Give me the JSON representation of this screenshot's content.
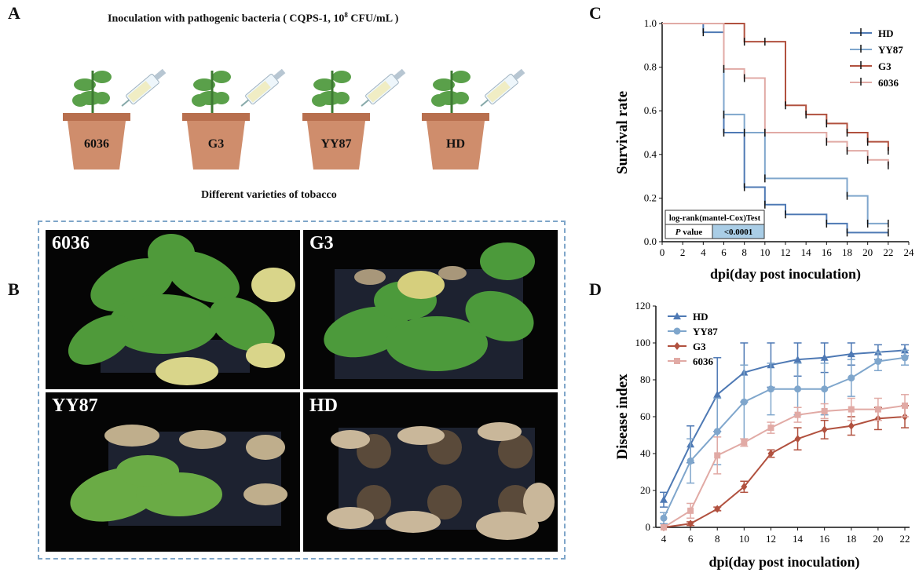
{
  "panel_a": {
    "letter": "A",
    "title": "Inoculation with pathogenic bacteria ( CQPS-1, 10",
    "title_sup": "8",
    "title_tail": " CFU/mL )",
    "pots": [
      "6036",
      "G3",
      "YY87",
      "HD"
    ],
    "caption": "Different varieties of tobacco"
  },
  "panel_b": {
    "letter": "B",
    "photos": [
      "6036",
      "G3",
      "YY87",
      "HD"
    ]
  },
  "colors": {
    "HD": "#4e79b4",
    "YY87": "#7fa6cc",
    "G3": "#b1513f",
    "6036": "#e1aaa5"
  },
  "chart_data": [
    {
      "panel": "C",
      "type": "line",
      "xlabel": "dpi(day post inoculation)",
      "ylabel": "Survival rate",
      "xlim": [
        0,
        24
      ],
      "ylim": [
        0,
        1.0
      ],
      "xticks": [
        0,
        2,
        4,
        6,
        8,
        10,
        12,
        14,
        16,
        18,
        20,
        22,
        24
      ],
      "yticks": [
        "0.0",
        "0.2",
        "0.4",
        "0.6",
        "0.8",
        "1.0"
      ],
      "legend_position": "top-right",
      "series": [
        {
          "name": "HD",
          "steps": [
            [
              0,
              1.0
            ],
            [
              4,
              0.96
            ],
            [
              6,
              0.5
            ],
            [
              8,
              0.25
            ],
            [
              10,
              0.17
            ],
            [
              12,
              0.125
            ],
            [
              16,
              0.083
            ],
            [
              18,
              0.042
            ],
            [
              22,
              0.042
            ]
          ]
        },
        {
          "name": "YY87",
          "steps": [
            [
              0,
              1.0
            ],
            [
              6,
              0.583
            ],
            [
              8,
              0.5
            ],
            [
              10,
              0.29
            ],
            [
              18,
              0.21
            ],
            [
              20,
              0.083
            ],
            [
              22,
              0.083
            ]
          ]
        },
        {
          "name": "G3",
          "steps": [
            [
              0,
              1.0
            ],
            [
              8,
              0.917
            ],
            [
              10,
              0.917
            ],
            [
              12,
              0.625
            ],
            [
              14,
              0.583
            ],
            [
              16,
              0.542
            ],
            [
              18,
              0.5
            ],
            [
              20,
              0.458
            ],
            [
              22,
              0.417
            ]
          ]
        },
        {
          "name": "6036",
          "steps": [
            [
              0,
              1.0
            ],
            [
              6,
              0.792
            ],
            [
              8,
              0.75
            ],
            [
              10,
              0.5
            ],
            [
              16,
              0.458
            ],
            [
              18,
              0.417
            ],
            [
              20,
              0.375
            ],
            [
              22,
              0.35
            ]
          ]
        }
      ],
      "stats_table": {
        "header": "log-rank(mantel-Cox)Test",
        "label_italic": "P",
        "label": " value",
        "value": "<0.0001"
      }
    },
    {
      "panel": "D",
      "type": "line",
      "xlabel": "dpi(day post inoculation)",
      "ylabel": "Disease index",
      "xlim": [
        4,
        22
      ],
      "ylim": [
        0,
        120
      ],
      "xticks": [
        4,
        6,
        8,
        10,
        12,
        14,
        16,
        18,
        20,
        22
      ],
      "yticks": [
        0,
        20,
        40,
        60,
        80,
        100,
        120
      ],
      "legend_position": "top-left",
      "x": [
        4,
        6,
        8,
        10,
        12,
        14,
        16,
        18,
        20,
        22
      ],
      "series": [
        {
          "name": "HD",
          "marker": "triangle",
          "values": [
            15,
            45,
            72,
            84,
            88,
            91,
            92,
            94,
            95,
            96
          ],
          "errors": [
            4,
            10,
            20,
            16,
            12,
            9,
            8,
            6,
            4,
            3
          ]
        },
        {
          "name": "YY87",
          "marker": "circle",
          "values": [
            5,
            36,
            52,
            68,
            75,
            75,
            75,
            81,
            90,
            92
          ],
          "errors": [
            3,
            12,
            18,
            20,
            14,
            14,
            14,
            10,
            5,
            4
          ]
        },
        {
          "name": "G3",
          "marker": "diamond",
          "values": [
            0,
            2,
            10,
            22,
            40,
            48,
            53,
            55,
            59,
            60
          ],
          "errors": [
            0,
            1,
            1,
            3,
            2,
            6,
            5,
            5,
            6,
            6
          ]
        },
        {
          "name": "6036",
          "marker": "square",
          "values": [
            0,
            9,
            39,
            46,
            54,
            61,
            63,
            64,
            64,
            66
          ],
          "errors": [
            0,
            4,
            10,
            2,
            3,
            4,
            4,
            6,
            6,
            6
          ]
        }
      ]
    }
  ]
}
